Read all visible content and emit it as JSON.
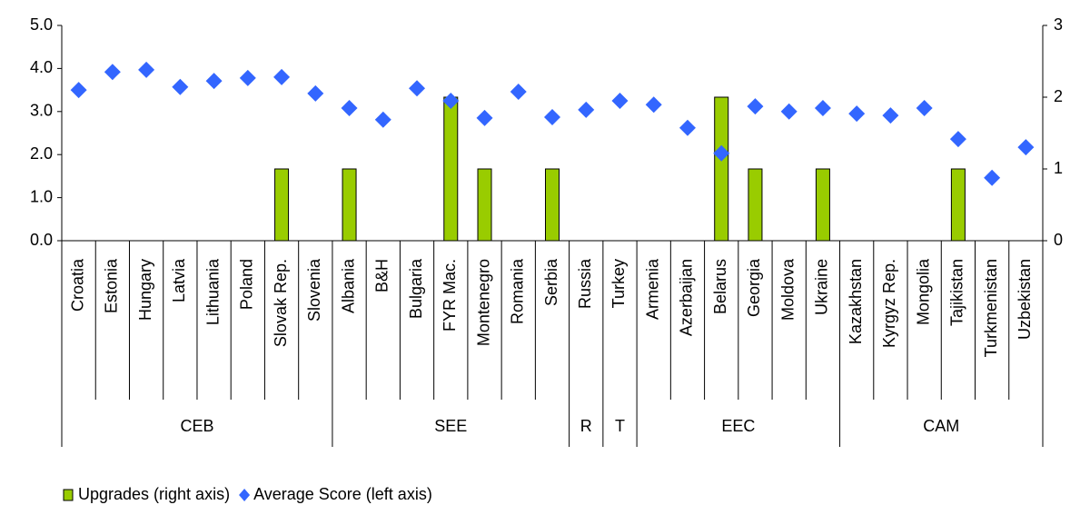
{
  "chart_data": {
    "type": "bar_scatter",
    "categories": [
      "Croatia",
      "Estonia",
      "Hungary",
      "Latvia",
      "Lithuania",
      "Poland",
      "Slovak Rep.",
      "Slovenia",
      "Albania",
      "B&H",
      "Bulgaria",
      "FYR Mac.",
      "Montenegro",
      "Romania",
      "Serbia",
      "Russia",
      "Turkey",
      "Armenia",
      "Azerbaijan",
      "Belarus",
      "Georgia",
      "Moldova",
      "Ukraine",
      "Kazakhstan",
      "Kyrgyz Rep.",
      "Mongolia",
      "Tajikistan",
      "Turkmenistan",
      "Uzbekistan"
    ],
    "groups": [
      {
        "label": "CEB",
        "span": 8
      },
      {
        "label": "SEE",
        "span": 7
      },
      {
        "label": "R",
        "span": 1
      },
      {
        "label": "T",
        "span": 1
      },
      {
        "label": "EEC",
        "span": 6
      },
      {
        "label": "CAM",
        "span": 6
      }
    ],
    "series": [
      {
        "name": "Upgrades (right axis)",
        "color": "#99cc00",
        "axis": "y2",
        "values": [
          0,
          0,
          0,
          0,
          0,
          0,
          1,
          0,
          1,
          0,
          0,
          2,
          1,
          0,
          1,
          0,
          0,
          0,
          0,
          2,
          1,
          0,
          1,
          0,
          0,
          0,
          1,
          0,
          0
        ]
      },
      {
        "name": "Average Score (left axis)",
        "color": "#3366ff",
        "values": [
          3.5,
          3.92,
          3.97,
          3.57,
          3.71,
          3.78,
          3.8,
          3.42,
          3.08,
          2.81,
          3.54,
          3.25,
          2.85,
          3.46,
          2.87,
          3.04,
          3.25,
          3.16,
          2.62,
          2.03,
          3.12,
          3.0,
          3.08,
          2.95,
          2.91,
          3.08,
          2.36,
          1.46,
          2.17
        ]
      }
    ],
    "ylim": [
      0,
      5
    ],
    "yticks": [
      {
        "value": 0,
        "label": "0.0"
      },
      {
        "value": 1,
        "label": "1.0"
      },
      {
        "value": 2,
        "label": "2.0"
      },
      {
        "value": 3,
        "label": "3.0"
      },
      {
        "value": 4,
        "label": "4.0"
      },
      {
        "value": 5,
        "label": "5.0"
      }
    ],
    "y2lim": [
      0,
      3
    ],
    "y2ticks": [
      0,
      1,
      2,
      3
    ]
  }
}
